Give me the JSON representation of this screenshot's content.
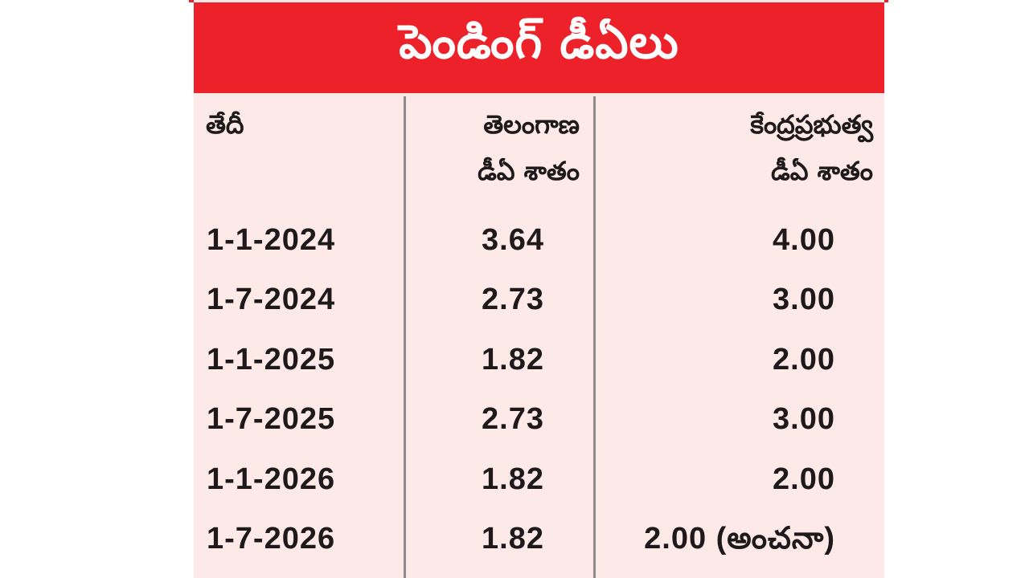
{
  "title": "పెండింగ్ డీఏలు",
  "headers": {
    "date": [
      "తేదీ"
    ],
    "telangana": [
      "తెలంగాణ",
      "డీఏ శాతం"
    ],
    "central": [
      "కేంద్రప్రభుత్వ",
      "డీఏ శాతం"
    ]
  },
  "rows": [
    {
      "date": "1-1-2024",
      "telangana": "3.64",
      "central": "4.00"
    },
    {
      "date": "1-7-2024",
      "telangana": "2.73",
      "central": "3.00"
    },
    {
      "date": "1-1-2025",
      "telangana": "1.82",
      "central": "2.00"
    },
    {
      "date": "1-7-2025",
      "telangana": "2.73",
      "central": "3.00"
    },
    {
      "date": "1-1-2026",
      "telangana": "1.82",
      "central": "2.00"
    },
    {
      "date": "1-7-2026",
      "telangana": "1.82",
      "central": "2.00 (అంచనా)"
    }
  ],
  "colors": {
    "title_bar": "#ec2129",
    "card_background": "#fde9e8",
    "divider": "#8d8a8c",
    "text": "#1e1a1c"
  }
}
